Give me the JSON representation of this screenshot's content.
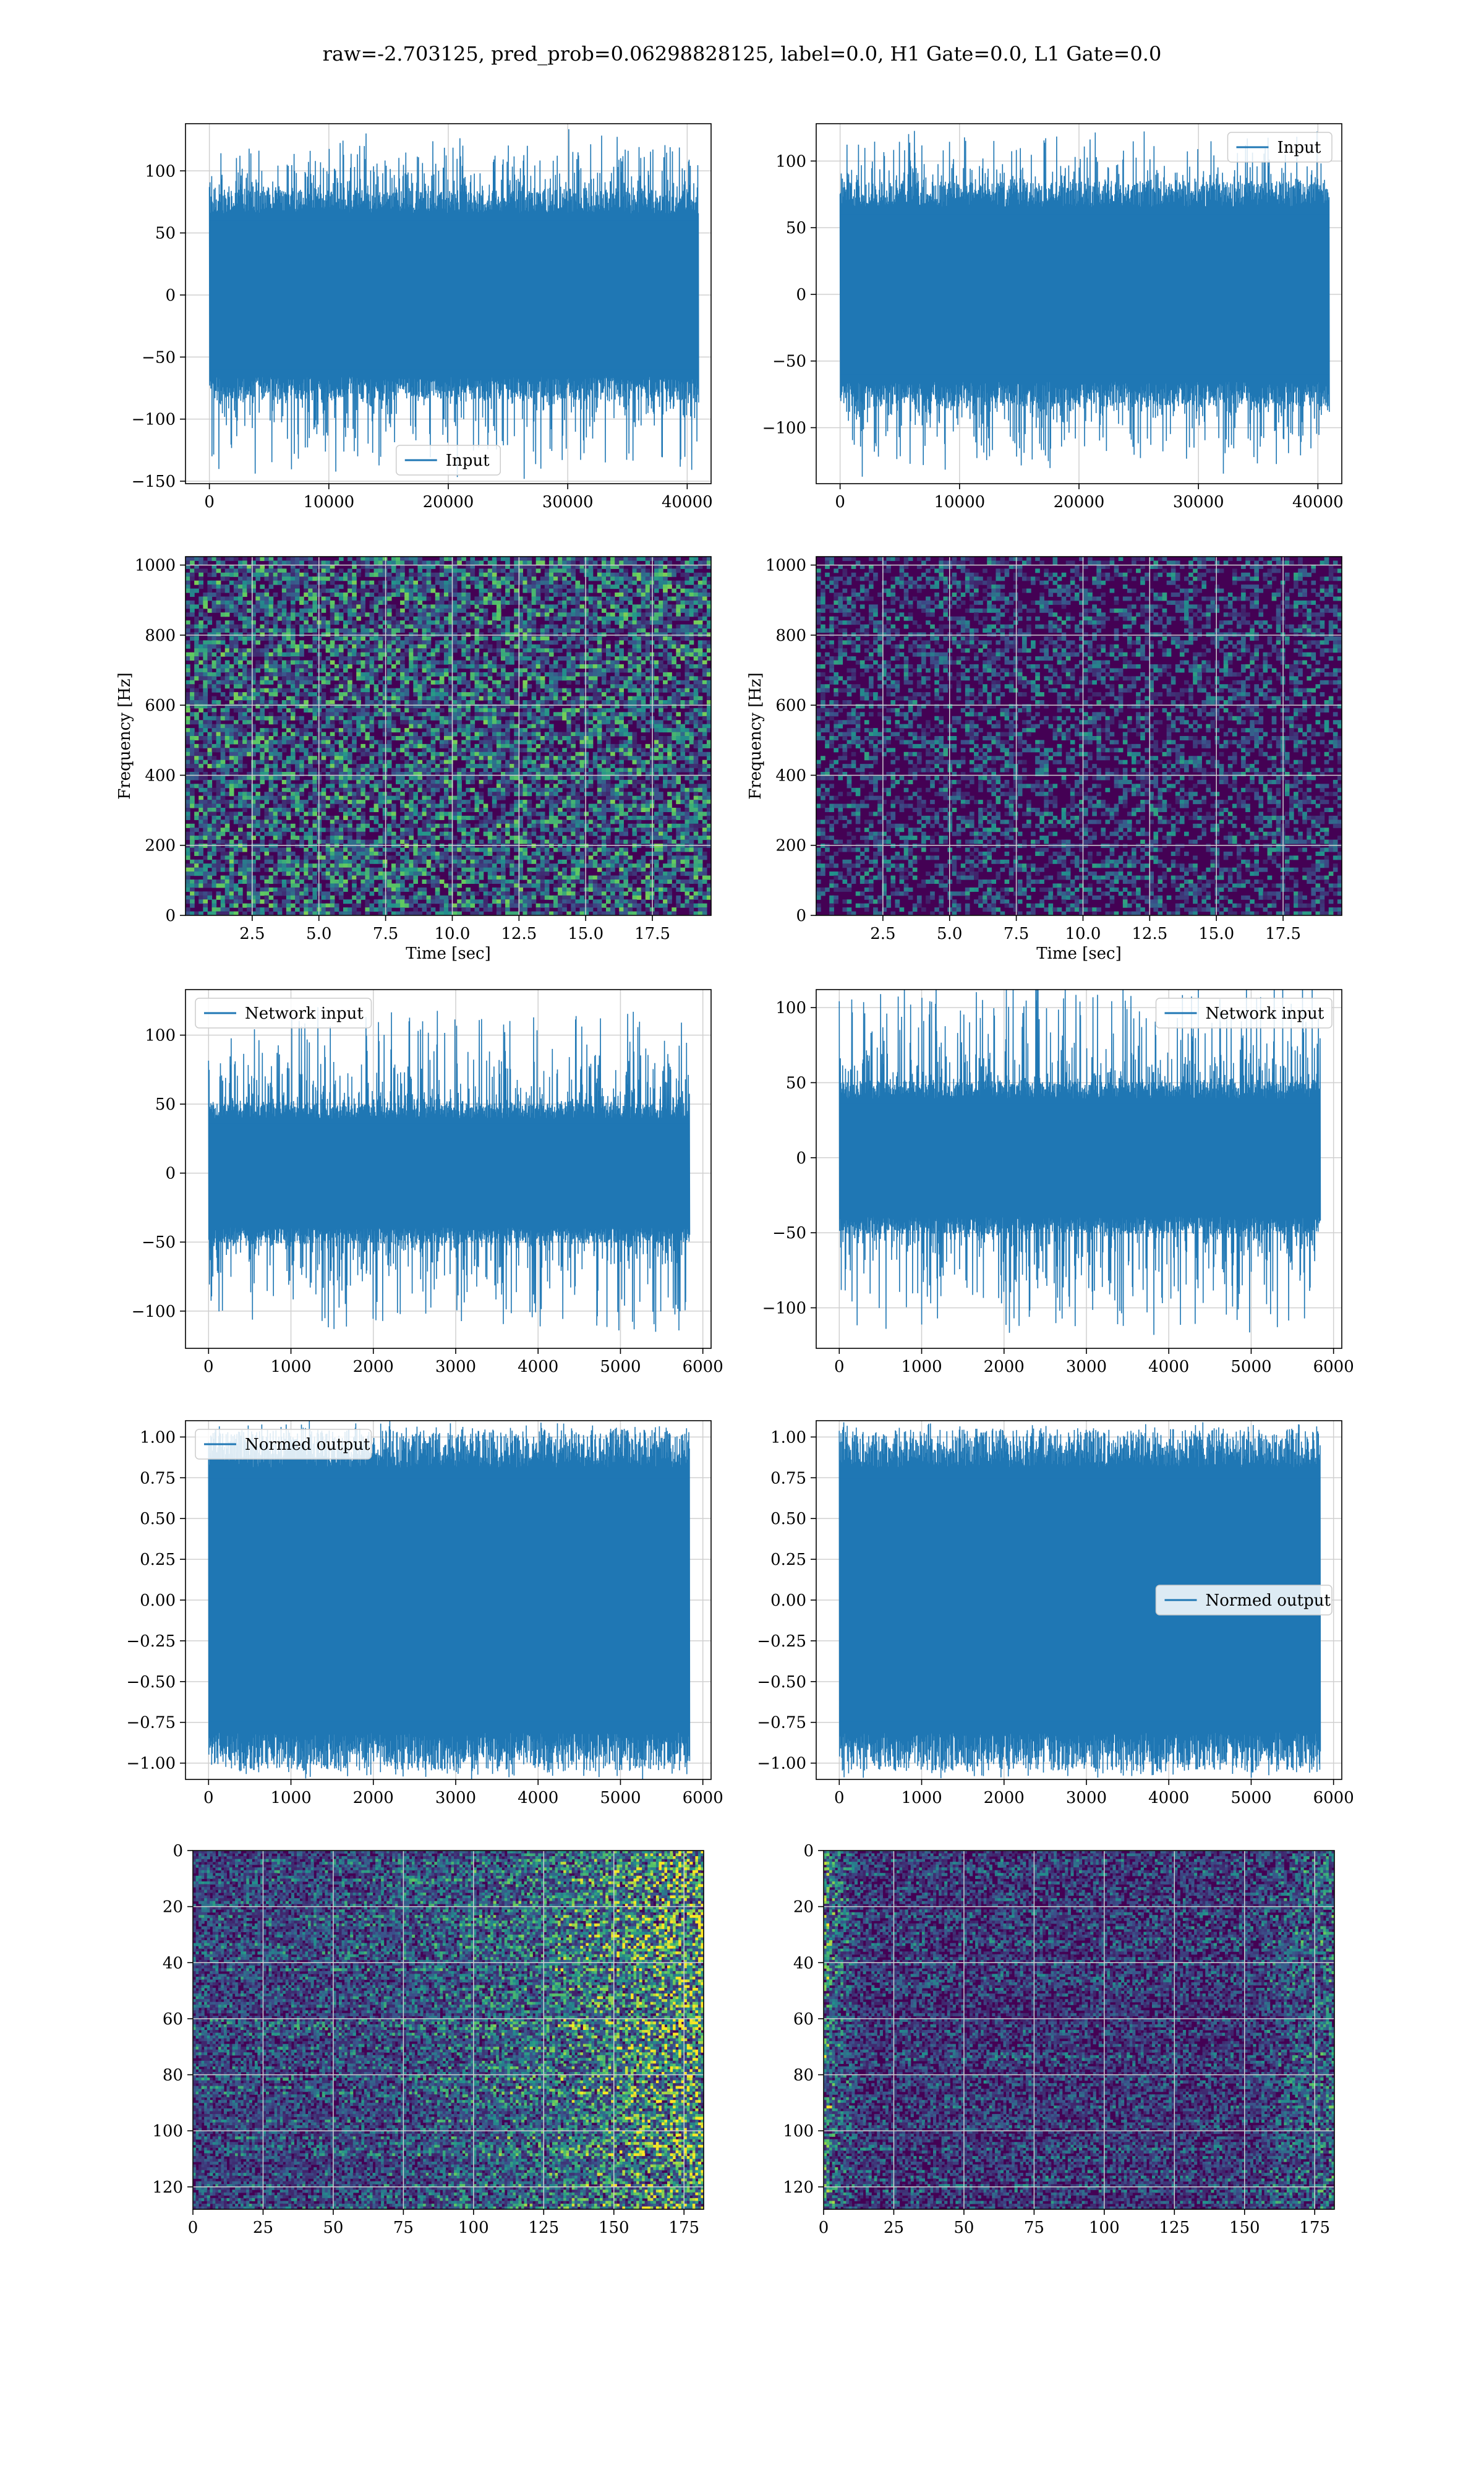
{
  "figure_title": "raw=-2.703125, pred_prob=0.06298828125, label=0.0, H1 Gate=0.0, L1 Gate=0.0",
  "colors": {
    "line": "#1f77b4",
    "grid": "#d0d0d0",
    "axes": "#000000",
    "viridis_dark": "#440154",
    "viridis_mid": "#21918c",
    "viridis_bright": "#fde725"
  },
  "chart_data": [
    {
      "id": "raw-left",
      "type": "line",
      "series": [
        {
          "name": "Input",
          "amplitude_envelope": [
            -75,
            75
          ],
          "peaks": [
            125,
            -140
          ]
        }
      ],
      "xlim": [
        -2000,
        42000
      ],
      "ylim": [
        -152,
        138
      ],
      "xticks": [
        0,
        10000,
        20000,
        30000,
        40000
      ],
      "yticks": [
        -150,
        -100,
        -50,
        0,
        50,
        100
      ],
      "legend": "lower center",
      "grid": true
    },
    {
      "id": "raw-right",
      "type": "line",
      "series": [
        {
          "name": "Input",
          "amplitude_envelope": [
            -75,
            75
          ],
          "peaks": [
            118,
            -130
          ]
        }
      ],
      "xlim": [
        -2000,
        42000
      ],
      "ylim": [
        -142,
        128
      ],
      "xticks": [
        0,
        10000,
        20000,
        30000,
        40000
      ],
      "yticks": [
        -100,
        -50,
        0,
        50,
        100
      ],
      "legend": "upper right",
      "grid": true
    },
    {
      "id": "spec-left",
      "type": "heatmap",
      "xlim": [
        0,
        19.7
      ],
      "ylim": [
        0,
        1024
      ],
      "xticks": [
        2.5,
        5.0,
        7.5,
        10.0,
        12.5,
        15.0,
        17.5
      ],
      "yticks": [
        0,
        200,
        400,
        600,
        800,
        1000
      ],
      "xlabel": "Time [sec]",
      "ylabel": "Frequency [Hz]",
      "intensity": "medium",
      "grid": true
    },
    {
      "id": "spec-right",
      "type": "heatmap",
      "xlim": [
        0,
        19.7
      ],
      "ylim": [
        0,
        1024
      ],
      "xticks": [
        2.5,
        5.0,
        7.5,
        10.0,
        12.5,
        15.0,
        17.5
      ],
      "yticks": [
        0,
        200,
        400,
        600,
        800,
        1000
      ],
      "xlabel": "Time [sec]",
      "ylabel": "Frequency [Hz]",
      "intensity": "low",
      "grid": true
    },
    {
      "id": "net-left",
      "type": "line",
      "series": [
        {
          "name": "Network input",
          "amplitude_envelope": [
            -45,
            45
          ],
          "peaks": [
            122,
            -115
          ]
        }
      ],
      "xlim": [
        -280,
        6100
      ],
      "ylim": [
        -127,
        133
      ],
      "xticks": [
        0,
        1000,
        2000,
        3000,
        4000,
        5000,
        6000
      ],
      "yticks": [
        -100,
        -50,
        0,
        50,
        100
      ],
      "legend": "upper left",
      "grid": true
    },
    {
      "id": "net-right",
      "type": "line",
      "series": [
        {
          "name": "Network input",
          "amplitude_envelope": [
            -45,
            45
          ],
          "peaks": [
            118,
            -115
          ]
        }
      ],
      "xlim": [
        -280,
        6100
      ],
      "ylim": [
        -127,
        112
      ],
      "xticks": [
        0,
        1000,
        2000,
        3000,
        4000,
        5000,
        6000
      ],
      "yticks": [
        -100,
        -50,
        0,
        50,
        100
      ],
      "legend": "upper right",
      "grid": true
    },
    {
      "id": "norm-left",
      "type": "line",
      "series": [
        {
          "name": "Normed output",
          "amplitude_envelope": [
            -0.93,
            0.93
          ],
          "peaks": [
            1.0,
            -1.0
          ]
        }
      ],
      "xlim": [
        -280,
        6100
      ],
      "ylim": [
        -1.1,
        1.1
      ],
      "xticks": [
        0,
        1000,
        2000,
        3000,
        4000,
        5000,
        6000
      ],
      "yticks": [
        -1.0,
        -0.75,
        -0.5,
        -0.25,
        0.0,
        0.25,
        0.5,
        0.75,
        1.0
      ],
      "legend": "upper left",
      "grid": true
    },
    {
      "id": "norm-right",
      "type": "line",
      "series": [
        {
          "name": "Normed output",
          "amplitude_envelope": [
            -0.93,
            0.93
          ],
          "peaks": [
            1.0,
            -1.0
          ]
        }
      ],
      "xlim": [
        -280,
        6100
      ],
      "ylim": [
        -1.1,
        1.1
      ],
      "xticks": [
        0,
        1000,
        2000,
        3000,
        4000,
        5000,
        6000
      ],
      "yticks": [
        -1.0,
        -0.75,
        -0.5,
        -0.25,
        0.0,
        0.25,
        0.5,
        0.75,
        1.0
      ],
      "legend": "center right",
      "grid": true
    },
    {
      "id": "feat-left",
      "type": "heatmap",
      "xlim": [
        0,
        182
      ],
      "ylim": [
        0,
        128
      ],
      "y_inverted": true,
      "xticks": [
        0,
        25,
        50,
        75,
        100,
        125,
        150,
        175
      ],
      "yticks": [
        0,
        20,
        40,
        60,
        80,
        100,
        120
      ],
      "intensity": "rows-bright-right",
      "grid": true
    },
    {
      "id": "feat-right",
      "type": "heatmap",
      "xlim": [
        0,
        182
      ],
      "ylim": [
        0,
        128
      ],
      "y_inverted": true,
      "xticks": [
        0,
        25,
        50,
        75,
        100,
        125,
        150,
        175
      ],
      "yticks": [
        0,
        20,
        40,
        60,
        80,
        100,
        120
      ],
      "intensity": "rows-bright-edges",
      "grid": true
    }
  ]
}
